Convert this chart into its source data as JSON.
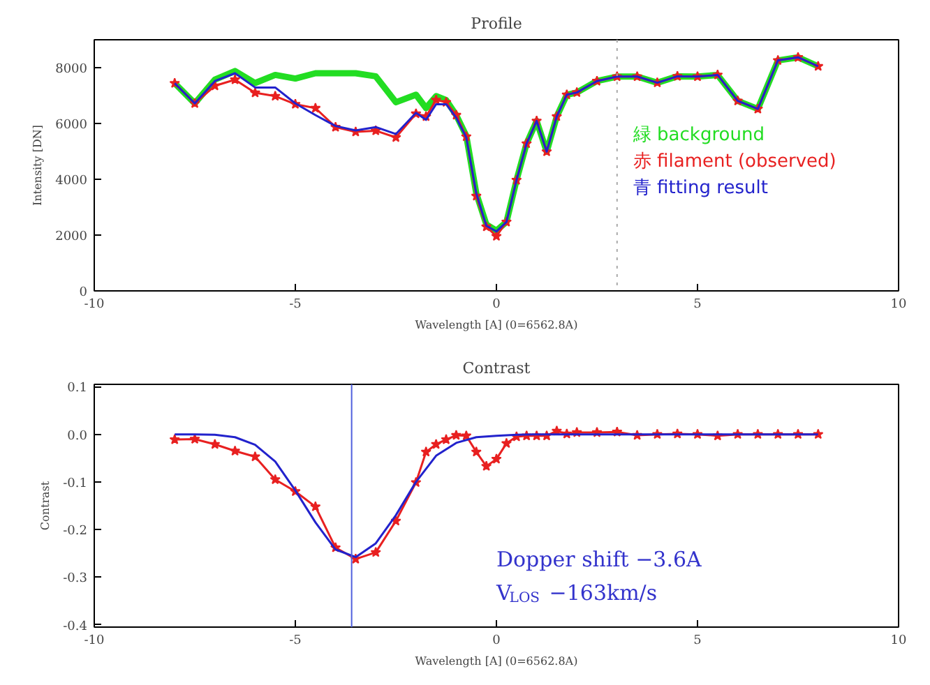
{
  "chart_data": [
    {
      "type": "line",
      "title": "Profile",
      "xlabel": "Wavelength [A] (0=6562.8A)",
      "ylabel": "Intensity [DN]",
      "xlim": [
        -10,
        10
      ],
      "xticks": [
        -10,
        -5,
        0,
        5,
        10
      ],
      "ylim": [
        0,
        9000
      ],
      "yticks": [
        0,
        2000,
        4000,
        6000,
        8000
      ],
      "grid": false,
      "legend": "right",
      "series": [
        {
          "name": "緑 background",
          "color": "#22dd22",
          "marker": "none",
          "x": [
            -8,
            -7.5,
            -7,
            -6.5,
            -6,
            -5.5,
            -5,
            -4.5,
            -4,
            -3.5,
            -3,
            -2.5,
            -2,
            -1.75,
            -1.5,
            -1.25,
            -1,
            -0.75,
            -0.5,
            -0.25,
            0,
            0.25,
            0.5,
            0.75,
            1,
            1.25,
            1.5,
            1.75,
            2,
            2.5,
            3,
            3.5,
            4,
            4.5,
            5,
            5.5,
            6,
            6.5,
            7,
            7.5,
            8
          ],
          "values": [
            7440,
            6720,
            7570,
            7880,
            7450,
            7740,
            7610,
            7800,
            7800,
            7800,
            7690,
            6760,
            7030,
            6550,
            6980,
            6840,
            6300,
            5560,
            3490,
            2380,
            2160,
            2470,
            3970,
            5280,
            6090,
            4990,
            6250,
            7030,
            7110,
            7520,
            7680,
            7680,
            7460,
            7690,
            7680,
            7740,
            6810,
            6520,
            8260,
            8370,
            8050
          ]
        },
        {
          "name": "赤 filament (observed)",
          "color": "#e82020",
          "marker": "star",
          "x": [
            -8,
            -7.5,
            -7,
            -6.5,
            -6,
            -5.5,
            -5,
            -4.5,
            -4,
            -3.5,
            -3,
            -2.5,
            -2,
            -1.75,
            -1.5,
            -1.25,
            -1,
            -0.75,
            -0.5,
            -0.25,
            0,
            0.25,
            0.5,
            0.75,
            1,
            1.25,
            1.5,
            1.75,
            2,
            2.5,
            3,
            3.5,
            4,
            4.5,
            5,
            5.5,
            6,
            6.5,
            7,
            7.5,
            8
          ],
          "values": [
            7440,
            6720,
            7350,
            7570,
            7100,
            6980,
            6690,
            6550,
            5870,
            5700,
            5740,
            5500,
            6350,
            6250,
            6840,
            6760,
            6300,
            5530,
            3400,
            2300,
            1960,
            2470,
            3970,
            5280,
            6090,
            4990,
            6250,
            7030,
            7110,
            7520,
            7680,
            7680,
            7460,
            7690,
            7680,
            7740,
            6810,
            6520,
            8260,
            8370,
            8050
          ]
        },
        {
          "name": "青 fitting result",
          "color": "#2222cc",
          "marker": "none",
          "x": [
            -8,
            -7.5,
            -7,
            -6.5,
            -6,
            -5.5,
            -5,
            -4.5,
            -4,
            -3.5,
            -3,
            -2.5,
            -2,
            -1.75,
            -1.5,
            -1.25,
            -1,
            -0.75,
            -0.5,
            -0.25,
            0,
            0.25,
            0.5,
            0.75,
            1,
            1.25,
            1.5,
            1.75,
            2,
            2.5,
            3,
            3.5,
            4,
            4.5,
            5,
            5.5,
            6,
            6.5,
            7,
            7.5,
            8
          ],
          "values": [
            7440,
            6720,
            7520,
            7800,
            7290,
            7290,
            6720,
            6300,
            5910,
            5750,
            5870,
            5620,
            6380,
            6130,
            6690,
            6690,
            6210,
            5500,
            3490,
            2330,
            2130,
            2470,
            3970,
            5280,
            6090,
            4990,
            6250,
            7030,
            7110,
            7520,
            7680,
            7680,
            7460,
            7690,
            7680,
            7740,
            6810,
            6520,
            8260,
            8370,
            8050
          ]
        }
      ],
      "ref_lines": [
        {
          "axis": "x",
          "value": 3,
          "color": "#aaaaaa",
          "line_style": "dotted"
        }
      ]
    },
    {
      "type": "line",
      "title": "Contrast",
      "xlabel": "Wavelength [A] (0=6562.8A)",
      "ylabel": "Contrast",
      "xlim": [
        -10,
        10
      ],
      "xticks": [
        -10,
        -5,
        0,
        5,
        10
      ],
      "ylim": [
        -0.405,
        0.105
      ],
      "yticks": [
        {
          "value": -0.4,
          "label": "-0.4"
        },
        {
          "value": -0.3,
          "label": "-0.3"
        },
        {
          "value": -0.2,
          "label": "-0.2"
        },
        {
          "value": -0.1,
          "label": "-0.1"
        },
        {
          "value": 0,
          "label": "0.0"
        },
        {
          "value": 0.1,
          "label": "0.1"
        }
      ],
      "grid": false,
      "series": [
        {
          "color": "#e82020",
          "marker": "star",
          "x": [
            -8,
            -7.5,
            -7,
            -6.5,
            -6,
            -5.5,
            -5,
            -4.5,
            -4,
            -3.5,
            -3,
            -2.5,
            -2,
            -1.75,
            -1.5,
            -1.25,
            -1,
            -0.75,
            -0.5,
            -0.25,
            0,
            0.25,
            0.5,
            0.75,
            1,
            1.25,
            1.5,
            1.75,
            2,
            2.5,
            3,
            3.5,
            4,
            4.5,
            5,
            5.5,
            6,
            6.5,
            7,
            7.5,
            8
          ],
          "values": [
            -0.011,
            -0.01,
            -0.021,
            -0.035,
            -0.047,
            -0.095,
            -0.12,
            -0.152,
            -0.238,
            -0.262,
            -0.248,
            -0.182,
            -0.101,
            -0.037,
            -0.021,
            -0.011,
            -0.002,
            -0.003,
            -0.037,
            -0.067,
            -0.052,
            -0.019,
            -0.005,
            -0.003,
            -0.003,
            -0.003,
            0.007,
            0.001,
            0.004,
            0.004,
            0.005,
            -0.002,
            0,
            0.001,
            0,
            -0.003,
            0,
            0,
            0,
            0,
            0
          ]
        },
        {
          "color": "#2222cc",
          "marker": "none",
          "x": [
            -8,
            -7.5,
            -7,
            -6.5,
            -6,
            -5.5,
            -5,
            -4.5,
            -4,
            -3.5,
            -3,
            -2.5,
            -2,
            -1.5,
            -1,
            -0.5,
            0,
            0.5,
            1,
            1.5,
            2,
            2.5,
            3,
            3.5,
            4,
            4.5,
            5,
            5.5,
            6,
            6.5,
            7,
            7.5,
            8
          ],
          "values": [
            0,
            0,
            -0.001,
            -0.006,
            -0.022,
            -0.057,
            -0.118,
            -0.185,
            -0.242,
            -0.258,
            -0.229,
            -0.17,
            -0.1,
            -0.045,
            -0.018,
            -0.006,
            -0.003,
            -0.001,
            0,
            0,
            0,
            0,
            0,
            0,
            0,
            0,
            0,
            0,
            0,
            0,
            0,
            0,
            0
          ]
        }
      ],
      "ref_lines": [
        {
          "axis": "x",
          "value": -3.6,
          "color": "#5060dd",
          "line_style": "solid"
        }
      ],
      "annotations": [
        "Dopper shift  −3.6A",
        "V$_{LOS}$ −163km/s"
      ]
    }
  ]
}
